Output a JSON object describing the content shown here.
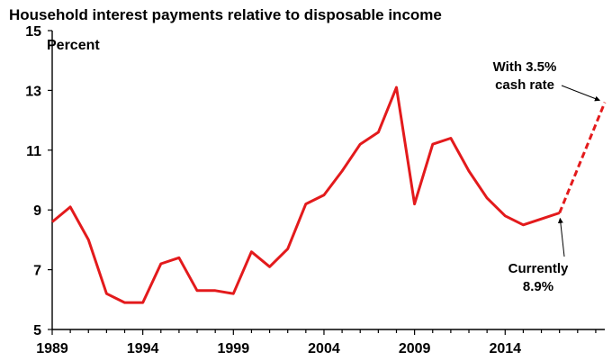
{
  "chart_data": {
    "type": "line",
    "title": "Household interest payments relative to disposable income",
    "ylabel": "Percent",
    "xlabel": "",
    "ylim": [
      5,
      15
    ],
    "xlim": [
      1989,
      2019.5
    ],
    "y_ticks": [
      5,
      7,
      9,
      11,
      13,
      15
    ],
    "x_ticks": [
      1989,
      1994,
      1999,
      2004,
      2009,
      2014
    ],
    "grid": false,
    "line_color": "#e31a1c",
    "series": [
      {
        "style": "solid",
        "x": [
          1989,
          1990,
          1991,
          1992,
          1993,
          1994,
          1995,
          1996,
          1997,
          1998,
          1999,
          2000,
          2001,
          2002,
          2003,
          2004,
          2005,
          2006,
          2007,
          2008,
          2009,
          2010,
          2011,
          2012,
          2013,
          2014,
          2015,
          2016,
          2017
        ],
        "values": [
          8.6,
          9.1,
          8.0,
          6.2,
          5.9,
          5.9,
          7.2,
          7.4,
          6.3,
          6.3,
          6.2,
          7.6,
          7.1,
          7.7,
          9.2,
          9.5,
          10.3,
          11.2,
          11.6,
          13.1,
          9.2,
          11.2,
          11.4,
          10.3,
          9.4,
          8.8,
          8.5,
          8.7,
          8.9
        ]
      },
      {
        "style": "dashed",
        "x": [
          2017,
          2019.5
        ],
        "values": [
          8.9,
          12.6
        ]
      }
    ],
    "annotations": [
      {
        "id": "rate",
        "lines": [
          "With 3.5%",
          "cash rate"
        ],
        "arrow_to": [
          2019.5,
          12.6
        ]
      },
      {
        "id": "current",
        "lines": [
          "Currently",
          "8.9%"
        ],
        "arrow_to": [
          2017,
          8.9
        ]
      }
    ]
  }
}
